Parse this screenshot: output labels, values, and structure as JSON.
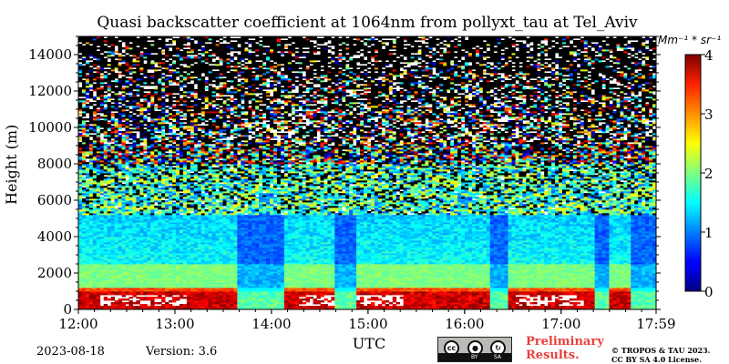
{
  "chart_data": {
    "type": "heatmap",
    "title": "Quasi backscatter coefficient at 1064nm from pollyxt_tau at Tel_Aviv",
    "xlabel": "UTC",
    "ylabel": "Height (m)",
    "x_ticks": [
      "12:00",
      "13:00",
      "14:00",
      "15:00",
      "16:00",
      "17:00",
      "17:59"
    ],
    "xlim": [
      "12:00",
      "17:59"
    ],
    "y_ticks": [
      0,
      2000,
      4000,
      6000,
      8000,
      10000,
      12000,
      14000
    ],
    "ylim": [
      0,
      15000
    ],
    "colorbar": {
      "unit_label": "Mm⁻¹ * sr⁻¹",
      "ticks": [
        0,
        1,
        2,
        3,
        4
      ],
      "range": [
        0,
        4
      ],
      "colormap": "jet"
    },
    "layers": [
      {
        "description": "Surface/near-ground high backscatter band",
        "height_m": [
          0,
          1000
        ],
        "value_range": [
          3.2,
          4
        ]
      },
      {
        "description": "Aerosol layer",
        "height_m": [
          1000,
          2500
        ],
        "value_range": [
          1.8,
          2.3
        ]
      },
      {
        "description": "Aerosol layer",
        "height_m": [
          2500,
          5200
        ],
        "value_range": [
          1.2,
          2.0
        ]
      },
      {
        "description": "Noisy region",
        "height_m": [
          5200,
          15000
        ],
        "value_range": [
          0,
          4
        ]
      }
    ]
  },
  "footer": {
    "date": "2023-08-18",
    "version": "Version: 3.6",
    "preliminary_line1": "Preliminary",
    "preliminary_line2": "Results.",
    "copyright_line1": "© TROPOS & TAU 2023.",
    "copyright_line2": "CC BY SA 4.0 License.",
    "license_logo": {
      "labels": [
        "cc",
        "BY",
        "SA"
      ]
    }
  },
  "colors": {
    "preliminary": "#e8413e"
  }
}
